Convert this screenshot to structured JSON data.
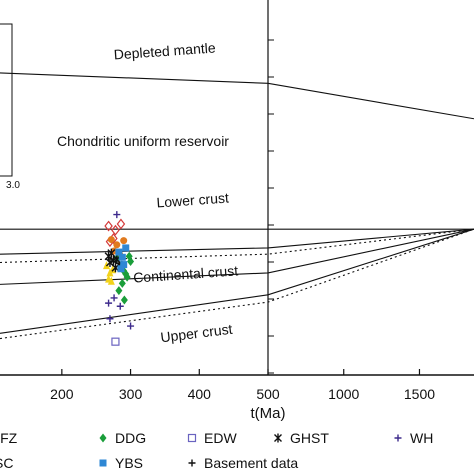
{
  "chart_data": {
    "type": "scatter",
    "title": "",
    "xlabel": "t(Ma)",
    "ylabel": "",
    "xlim_left_panel": [
      110,
      500
    ],
    "xlim_right_panel": [
      500,
      1860
    ],
    "x_ticks_left": [
      200,
      300,
      400,
      500
    ],
    "x_ticks_right": [
      1000,
      1500
    ],
    "inset_tick_label": "3.0",
    "grid": false,
    "legend_position": "bottom",
    "reference_lines": [
      {
        "label": "Depleted mantle",
        "x": [
          110,
          500,
          1860
        ],
        "y": [
          15.0,
          14.0,
          10.6
        ]
      },
      {
        "label": "Chondritic uniform reservoir",
        "x": [
          110,
          1860
        ],
        "y": [
          0,
          0
        ]
      },
      {
        "label": "Lower crust",
        "x": [
          110,
          500,
          1860
        ],
        "y": [
          -2.4,
          -1.8,
          0
        ],
        "style": "solid"
      },
      {
        "label": "",
        "x": [
          110,
          500,
          1860
        ],
        "y": [
          -3.2,
          -2.4,
          0
        ],
        "style": "dotted"
      },
      {
        "label": "Continental crust",
        "x": [
          110,
          500,
          1860
        ],
        "y": [
          -5.3,
          -4.2,
          0
        ],
        "style": "solid"
      },
      {
        "label": "Upper crust",
        "x": [
          110,
          500,
          1860
        ],
        "y": [
          -10.0,
          -6.3,
          0
        ],
        "style": "solid"
      },
      {
        "label": "",
        "x": [
          110,
          500,
          1860
        ],
        "y": [
          -10.5,
          -7.0,
          0
        ],
        "style": "dotted"
      }
    ],
    "series": [
      {
        "name": "DDG",
        "color": "#1a9e3a",
        "marker": "diamond-filled",
        "x": [
          280,
          285,
          290,
          295,
          300,
          288,
          293,
          298,
          283,
          291
        ],
        "y": [
          -2.8,
          -3.5,
          -4.0,
          -4.6,
          -3.1,
          -5.2,
          -4.3,
          -2.6,
          -5.9,
          -6.8
        ]
      },
      {
        "name": "EDW",
        "color": "#6a63c0",
        "marker": "square-open",
        "x": [
          278
        ],
        "y": [
          -10.8
        ]
      },
      {
        "name": "GHST",
        "color": "#111111",
        "marker": "asterisk",
        "x": [
          268,
          272,
          275,
          280,
          283,
          278,
          270
        ],
        "y": [
          -2.6,
          -2.3,
          -3.0,
          -2.9,
          -3.4,
          -3.7,
          -3.2
        ]
      },
      {
        "name": "WH",
        "color": "#3d2a8c",
        "marker": "plus",
        "x": [
          280,
          268,
          285,
          300,
          276,
          270
        ],
        "y": [
          1.4,
          -7.1,
          -7.4,
          -9.3,
          -6.6,
          -8.6
        ]
      },
      {
        "name": "YBS",
        "color": "#2e87d4",
        "marker": "square-filled",
        "x": [
          283,
          288,
          290,
          293,
          286
        ],
        "y": [
          -2.2,
          -2.7,
          -3.4,
          -1.8,
          -3.8
        ]
      },
      {
        "name": "Basement data",
        "color": "#111111",
        "marker": "plus",
        "x": [],
        "y": []
      }
    ],
    "extra_points": [
      {
        "color": "#d43a3a",
        "marker": "diamond-open",
        "x": [
          268,
          278,
          286,
          275,
          270
        ],
        "y": [
          0.3,
          -0.1,
          0.5,
          -0.9,
          -1.2
        ]
      },
      {
        "color": "#e07a1f",
        "marker": "circle-filled",
        "x": [
          272,
          280,
          276,
          284,
          290
        ],
        "y": [
          -1.0,
          -1.5,
          -2.1,
          -2.4,
          -1.1
        ]
      },
      {
        "color": "#f2d21a",
        "marker": "triangle-filled",
        "x": [
          265,
          270,
          268,
          274,
          272
        ],
        "y": [
          -3.5,
          -4.2,
          -4.8,
          -3.9,
          -5.0
        ]
      }
    ],
    "legend_rows": [
      [
        "NFZ",
        "DDG",
        "EDW",
        "GHST",
        "WH"
      ],
      [
        "SC",
        "YBS",
        "Basement data"
      ]
    ]
  }
}
